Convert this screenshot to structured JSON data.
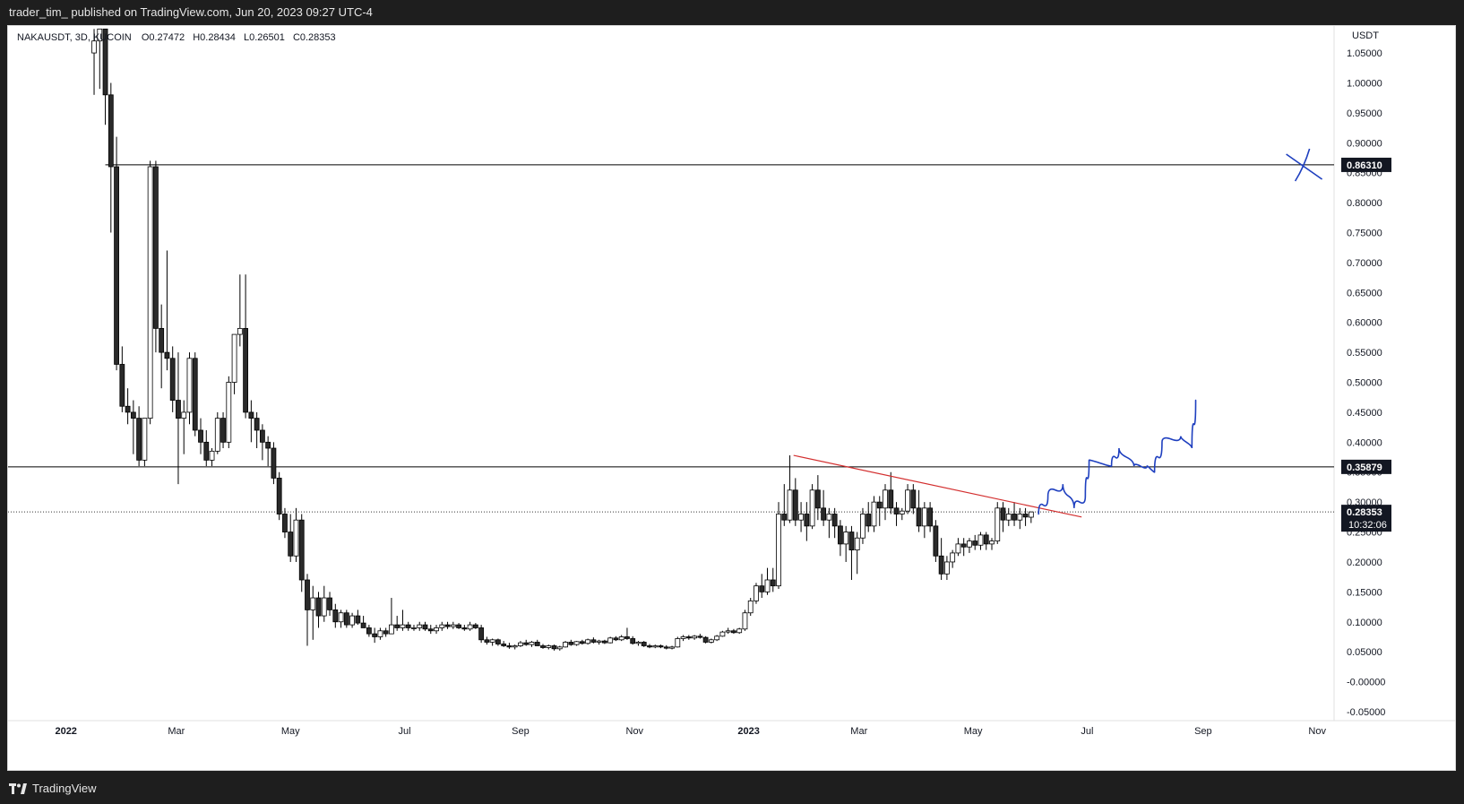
{
  "header": {
    "published_line": "trader_tim_ published on TradingView.com, Jun 20, 2023 09:27 UTC-4"
  },
  "legend": {
    "symbol": "NAKAUSDT, 3D, KUCOIN",
    "open": "O0.27472",
    "high": "H0.28434",
    "low": "L0.26501",
    "close": "C0.28353"
  },
  "footer": {
    "brand": "TradingView"
  },
  "price_axis": {
    "currency": "USDT",
    "ticks": [
      "1.05000",
      "1.00000",
      "0.95000",
      "0.90000",
      "0.85000",
      "0.80000",
      "0.75000",
      "0.70000",
      "0.65000",
      "0.60000",
      "0.55000",
      "0.50000",
      "0.45000",
      "0.40000",
      "0.35000",
      "0.30000",
      "0.25000",
      "0.20000",
      "0.15000",
      "0.10000",
      "0.05000",
      "-0.00000",
      "-0.05000"
    ],
    "tick_values": [
      1.05,
      1.0,
      0.95,
      0.9,
      0.85,
      0.8,
      0.75,
      0.7,
      0.65,
      0.6,
      0.55,
      0.5,
      0.45,
      0.4,
      0.35,
      0.3,
      0.25,
      0.2,
      0.15,
      0.1,
      0.05,
      0,
      -0.05
    ]
  },
  "time_axis": {
    "labels": [
      "2022",
      "Mar",
      "May",
      "Jul",
      "Sep",
      "Nov",
      "2023",
      "Mar",
      "May",
      "Jul",
      "Sep",
      "Nov"
    ],
    "dates": [
      "2022-01-01",
      "2022-03-01",
      "2022-05-01",
      "2022-07-01",
      "2022-09-01",
      "2022-11-01",
      "2023-01-01",
      "2023-03-01",
      "2023-05-01",
      "2023-07-01",
      "2023-09-01",
      "2023-11-01"
    ],
    "bold": [
      true,
      false,
      false,
      false,
      false,
      false,
      true,
      false,
      false,
      false,
      false,
      false
    ]
  },
  "colors": {
    "candle_up_body": "#ffffff",
    "candle_down_body": "#2a2a2a",
    "candle_outline": "#000000",
    "trendline": "#d32f2f",
    "drawing": "#1e3fbf",
    "hline": "#000000",
    "badge_bg": "#131722",
    "badge_text": "#ffffff"
  },
  "chart_data": {
    "type": "candlestick",
    "timeframe": "3D",
    "x_range": [
      "2021-12-01",
      "2023-11-10"
    ],
    "ylim": [
      -0.065,
      1.095
    ],
    "horizontal_lines": [
      {
        "value": 0.8631,
        "label": "0.86310",
        "start": "2022-01-22"
      },
      {
        "value": 0.35879,
        "label": "0.35879",
        "start": "2021-12-01"
      }
    ],
    "last_price": {
      "value": 0.28353,
      "label": "0.28353",
      "countdown": "10:32:06"
    },
    "trendline": {
      "from": {
        "date": "2023-01-25",
        "value": 0.378
      },
      "to": {
        "date": "2023-06-28",
        "value": 0.275
      }
    },
    "candles": [
      [
        "2022-01-16",
        1.05,
        1.09,
        0.98,
        1.07
      ],
      [
        "2022-01-19",
        1.07,
        1.09,
        0.99,
        1.09
      ],
      [
        "2022-01-22",
        1.09,
        1.09,
        0.93,
        0.98
      ],
      [
        "2022-01-25",
        0.98,
        1.0,
        0.75,
        0.86
      ],
      [
        "2022-01-28",
        0.86,
        0.91,
        0.52,
        0.53
      ],
      [
        "2022-01-31",
        0.53,
        0.56,
        0.45,
        0.46
      ],
      [
        "2022-02-03",
        0.46,
        0.49,
        0.43,
        0.45
      ],
      [
        "2022-02-06",
        0.45,
        0.47,
        0.38,
        0.44
      ],
      [
        "2022-02-09",
        0.44,
        0.46,
        0.36,
        0.37
      ],
      [
        "2022-02-12",
        0.37,
        0.44,
        0.36,
        0.44
      ],
      [
        "2022-02-15",
        0.44,
        0.87,
        0.43,
        0.86
      ],
      [
        "2022-02-18",
        0.86,
        0.87,
        0.55,
        0.59
      ],
      [
        "2022-02-21",
        0.59,
        0.63,
        0.49,
        0.55
      ],
      [
        "2022-02-24",
        0.55,
        0.72,
        0.52,
        0.54
      ],
      [
        "2022-02-27",
        0.54,
        0.56,
        0.45,
        0.47
      ],
      [
        "2022-03-02",
        0.47,
        0.55,
        0.33,
        0.44
      ],
      [
        "2022-03-05",
        0.44,
        0.47,
        0.38,
        0.45
      ],
      [
        "2022-03-08",
        0.45,
        0.55,
        0.43,
        0.54
      ],
      [
        "2022-03-11",
        0.54,
        0.55,
        0.41,
        0.42
      ],
      [
        "2022-03-14",
        0.42,
        0.44,
        0.38,
        0.4
      ],
      [
        "2022-03-17",
        0.4,
        0.42,
        0.36,
        0.37
      ],
      [
        "2022-03-20",
        0.37,
        0.39,
        0.36,
        0.385
      ],
      [
        "2022-03-23",
        0.385,
        0.45,
        0.38,
        0.44
      ],
      [
        "2022-03-26",
        0.44,
        0.45,
        0.39,
        0.4
      ],
      [
        "2022-03-29",
        0.4,
        0.51,
        0.39,
        0.5
      ],
      [
        "2022-04-01",
        0.5,
        0.58,
        0.48,
        0.58
      ],
      [
        "2022-04-04",
        0.58,
        0.68,
        0.56,
        0.59
      ],
      [
        "2022-04-07",
        0.59,
        0.68,
        0.44,
        0.45
      ],
      [
        "2022-04-10",
        0.45,
        0.47,
        0.4,
        0.44
      ],
      [
        "2022-04-13",
        0.44,
        0.45,
        0.39,
        0.42
      ],
      [
        "2022-04-16",
        0.42,
        0.43,
        0.37,
        0.4
      ],
      [
        "2022-04-19",
        0.4,
        0.41,
        0.36,
        0.39
      ],
      [
        "2022-04-22",
        0.39,
        0.4,
        0.33,
        0.34
      ],
      [
        "2022-04-25",
        0.34,
        0.35,
        0.27,
        0.28
      ],
      [
        "2022-04-28",
        0.28,
        0.29,
        0.24,
        0.25
      ],
      [
        "2022-05-01",
        0.25,
        0.28,
        0.2,
        0.21
      ],
      [
        "2022-05-04",
        0.21,
        0.29,
        0.2,
        0.27
      ],
      [
        "2022-05-07",
        0.27,
        0.28,
        0.15,
        0.17
      ],
      [
        "2022-05-10",
        0.17,
        0.18,
        0.06,
        0.12
      ],
      [
        "2022-05-13",
        0.12,
        0.16,
        0.07,
        0.14
      ],
      [
        "2022-05-16",
        0.14,
        0.15,
        0.09,
        0.11
      ],
      [
        "2022-05-19",
        0.11,
        0.16,
        0.1,
        0.14
      ],
      [
        "2022-05-22",
        0.14,
        0.15,
        0.11,
        0.12
      ],
      [
        "2022-05-25",
        0.12,
        0.13,
        0.09,
        0.1
      ],
      [
        "2022-05-28",
        0.1,
        0.12,
        0.09,
        0.115
      ],
      [
        "2022-05-31",
        0.115,
        0.12,
        0.09,
        0.095
      ],
      [
        "2022-06-03",
        0.095,
        0.115,
        0.09,
        0.11
      ],
      [
        "2022-06-06",
        0.11,
        0.12,
        0.095,
        0.098
      ],
      [
        "2022-06-09",
        0.098,
        0.11,
        0.09,
        0.09
      ],
      [
        "2022-06-12",
        0.09,
        0.095,
        0.075,
        0.08
      ],
      [
        "2022-06-15",
        0.08,
        0.09,
        0.065,
        0.075
      ],
      [
        "2022-06-18",
        0.075,
        0.09,
        0.07,
        0.085
      ],
      [
        "2022-06-21",
        0.085,
        0.09,
        0.075,
        0.08
      ],
      [
        "2022-06-24",
        0.08,
        0.14,
        0.08,
        0.095
      ],
      [
        "2022-06-27",
        0.095,
        0.11,
        0.085,
        0.09
      ],
      [
        "2022-06-30",
        0.09,
        0.12,
        0.085,
        0.095
      ],
      [
        "2022-07-03",
        0.095,
        0.1,
        0.085,
        0.09
      ],
      [
        "2022-07-06",
        0.09,
        0.095,
        0.085,
        0.09
      ],
      [
        "2022-07-09",
        0.09,
        0.1,
        0.085,
        0.095
      ],
      [
        "2022-07-12",
        0.095,
        0.1,
        0.085,
        0.088
      ],
      [
        "2022-07-15",
        0.088,
        0.095,
        0.08,
        0.085
      ],
      [
        "2022-07-18",
        0.085,
        0.095,
        0.08,
        0.09
      ],
      [
        "2022-07-21",
        0.09,
        0.1,
        0.085,
        0.095
      ],
      [
        "2022-07-24",
        0.095,
        0.1,
        0.088,
        0.092
      ],
      [
        "2022-07-27",
        0.092,
        0.1,
        0.088,
        0.095
      ],
      [
        "2022-07-30",
        0.095,
        0.098,
        0.088,
        0.09
      ],
      [
        "2022-08-02",
        0.09,
        0.095,
        0.085,
        0.088
      ],
      [
        "2022-08-05",
        0.088,
        0.1,
        0.085,
        0.095
      ],
      [
        "2022-08-08",
        0.095,
        0.098,
        0.088,
        0.09
      ],
      [
        "2022-08-11",
        0.09,
        0.095,
        0.065,
        0.07
      ],
      [
        "2022-08-14",
        0.07,
        0.075,
        0.062,
        0.066
      ],
      [
        "2022-08-17",
        0.066,
        0.072,
        0.06,
        0.07
      ],
      [
        "2022-08-20",
        0.07,
        0.072,
        0.06,
        0.063
      ],
      [
        "2022-08-23",
        0.063,
        0.068,
        0.058,
        0.06
      ],
      [
        "2022-08-26",
        0.06,
        0.065,
        0.055,
        0.058
      ],
      [
        "2022-08-29",
        0.058,
        0.062,
        0.054,
        0.06
      ],
      [
        "2022-09-01",
        0.06,
        0.068,
        0.058,
        0.065
      ],
      [
        "2022-09-04",
        0.065,
        0.07,
        0.06,
        0.062
      ],
      [
        "2022-09-07",
        0.062,
        0.068,
        0.058,
        0.066
      ],
      [
        "2022-09-10",
        0.066,
        0.07,
        0.06,
        0.06
      ],
      [
        "2022-09-13",
        0.06,
        0.063,
        0.055,
        0.057
      ],
      [
        "2022-09-16",
        0.057,
        0.062,
        0.054,
        0.06
      ],
      [
        "2022-09-19",
        0.06,
        0.062,
        0.052,
        0.055
      ],
      [
        "2022-09-22",
        0.055,
        0.06,
        0.052,
        0.058
      ],
      [
        "2022-09-25",
        0.058,
        0.068,
        0.057,
        0.066
      ],
      [
        "2022-09-28",
        0.066,
        0.07,
        0.06,
        0.062
      ],
      [
        "2022-10-01",
        0.062,
        0.068,
        0.06,
        0.067
      ],
      [
        "2022-10-04",
        0.067,
        0.07,
        0.062,
        0.064
      ],
      [
        "2022-10-07",
        0.064,
        0.072,
        0.062,
        0.07
      ],
      [
        "2022-10-10",
        0.07,
        0.074,
        0.064,
        0.066
      ],
      [
        "2022-10-13",
        0.066,
        0.07,
        0.062,
        0.068
      ],
      [
        "2022-10-16",
        0.068,
        0.07,
        0.063,
        0.065
      ],
      [
        "2022-10-19",
        0.065,
        0.075,
        0.064,
        0.073
      ],
      [
        "2022-10-22",
        0.073,
        0.076,
        0.068,
        0.07
      ],
      [
        "2022-10-25",
        0.07,
        0.078,
        0.068,
        0.075
      ],
      [
        "2022-10-28",
        0.075,
        0.09,
        0.07,
        0.072
      ],
      [
        "2022-10-31",
        0.072,
        0.076,
        0.062,
        0.064
      ],
      [
        "2022-11-03",
        0.064,
        0.068,
        0.06,
        0.066
      ],
      [
        "2022-11-06",
        0.066,
        0.068,
        0.058,
        0.06
      ],
      [
        "2022-11-09",
        0.06,
        0.063,
        0.056,
        0.058
      ],
      [
        "2022-11-12",
        0.058,
        0.062,
        0.056,
        0.06
      ],
      [
        "2022-11-15",
        0.06,
        0.062,
        0.056,
        0.058
      ],
      [
        "2022-11-18",
        0.058,
        0.061,
        0.054,
        0.056
      ],
      [
        "2022-11-21",
        0.056,
        0.06,
        0.054,
        0.058
      ],
      [
        "2022-11-24",
        0.058,
        0.075,
        0.057,
        0.072
      ],
      [
        "2022-11-27",
        0.072,
        0.078,
        0.068,
        0.075
      ],
      [
        "2022-11-30",
        0.075,
        0.078,
        0.07,
        0.073
      ],
      [
        "2022-12-03",
        0.073,
        0.078,
        0.07,
        0.076
      ],
      [
        "2022-12-06",
        0.076,
        0.08,
        0.072,
        0.074
      ],
      [
        "2022-12-09",
        0.074,
        0.076,
        0.064,
        0.066
      ],
      [
        "2022-12-12",
        0.066,
        0.072,
        0.064,
        0.07
      ],
      [
        "2022-12-15",
        0.07,
        0.078,
        0.068,
        0.076
      ],
      [
        "2022-12-18",
        0.076,
        0.085,
        0.075,
        0.083
      ],
      [
        "2022-12-21",
        0.083,
        0.09,
        0.08,
        0.085
      ],
      [
        "2022-12-24",
        0.085,
        0.088,
        0.08,
        0.082
      ],
      [
        "2022-12-27",
        0.082,
        0.09,
        0.08,
        0.088
      ],
      [
        "2022-12-30",
        0.088,
        0.12,
        0.085,
        0.115
      ],
      [
        "2023-01-02",
        0.115,
        0.14,
        0.11,
        0.135
      ],
      [
        "2023-01-05",
        0.135,
        0.165,
        0.13,
        0.16
      ],
      [
        "2023-01-08",
        0.16,
        0.18,
        0.14,
        0.15
      ],
      [
        "2023-01-11",
        0.15,
        0.19,
        0.145,
        0.17
      ],
      [
        "2023-01-14",
        0.17,
        0.19,
        0.15,
        0.16
      ],
      [
        "2023-01-17",
        0.16,
        0.3,
        0.155,
        0.28
      ],
      [
        "2023-01-20",
        0.28,
        0.33,
        0.26,
        0.27
      ],
      [
        "2023-01-23",
        0.27,
        0.378,
        0.265,
        0.32
      ],
      [
        "2023-01-26",
        0.32,
        0.34,
        0.26,
        0.27
      ],
      [
        "2023-01-29",
        0.27,
        0.3,
        0.25,
        0.28
      ],
      [
        "2023-02-01",
        0.28,
        0.3,
        0.235,
        0.26
      ],
      [
        "2023-02-04",
        0.26,
        0.33,
        0.255,
        0.32
      ],
      [
        "2023-02-07",
        0.32,
        0.345,
        0.27,
        0.29
      ],
      [
        "2023-02-10",
        0.29,
        0.32,
        0.26,
        0.27
      ],
      [
        "2023-02-13",
        0.27,
        0.29,
        0.24,
        0.28
      ],
      [
        "2023-02-16",
        0.28,
        0.29,
        0.24,
        0.26
      ],
      [
        "2023-02-19",
        0.26,
        0.27,
        0.21,
        0.23
      ],
      [
        "2023-02-22",
        0.23,
        0.26,
        0.2,
        0.25
      ],
      [
        "2023-02-25",
        0.25,
        0.26,
        0.17,
        0.22
      ],
      [
        "2023-02-28",
        0.22,
        0.25,
        0.18,
        0.24
      ],
      [
        "2023-03-03",
        0.24,
        0.29,
        0.23,
        0.28
      ],
      [
        "2023-03-06",
        0.28,
        0.3,
        0.25,
        0.26
      ],
      [
        "2023-03-09",
        0.26,
        0.31,
        0.25,
        0.3
      ],
      [
        "2023-03-12",
        0.3,
        0.31,
        0.26,
        0.29
      ],
      [
        "2023-03-15",
        0.29,
        0.33,
        0.27,
        0.32
      ],
      [
        "2023-03-18",
        0.32,
        0.35,
        0.28,
        0.29
      ],
      [
        "2023-03-21",
        0.29,
        0.3,
        0.26,
        0.28
      ],
      [
        "2023-03-24",
        0.28,
        0.29,
        0.27,
        0.285
      ],
      [
        "2023-03-27",
        0.285,
        0.33,
        0.28,
        0.32
      ],
      [
        "2023-03-30",
        0.32,
        0.33,
        0.28,
        0.29
      ],
      [
        "2023-04-02",
        0.29,
        0.32,
        0.25,
        0.26
      ],
      [
        "2023-04-05",
        0.26,
        0.3,
        0.24,
        0.29
      ],
      [
        "2023-04-08",
        0.29,
        0.3,
        0.25,
        0.26
      ],
      [
        "2023-04-11",
        0.26,
        0.27,
        0.2,
        0.21
      ],
      [
        "2023-04-14",
        0.21,
        0.24,
        0.17,
        0.18
      ],
      [
        "2023-04-17",
        0.18,
        0.21,
        0.17,
        0.2
      ],
      [
        "2023-04-20",
        0.2,
        0.22,
        0.19,
        0.215
      ],
      [
        "2023-04-23",
        0.215,
        0.24,
        0.21,
        0.23
      ],
      [
        "2023-04-26",
        0.23,
        0.24,
        0.21,
        0.225
      ],
      [
        "2023-04-29",
        0.225,
        0.24,
        0.215,
        0.235
      ],
      [
        "2023-05-02",
        0.235,
        0.245,
        0.22,
        0.228
      ],
      [
        "2023-05-05",
        0.228,
        0.25,
        0.22,
        0.245
      ],
      [
        "2023-05-08",
        0.245,
        0.25,
        0.22,
        0.23
      ],
      [
        "2023-05-11",
        0.23,
        0.24,
        0.22,
        0.235
      ],
      [
        "2023-05-14",
        0.235,
        0.3,
        0.23,
        0.29
      ],
      [
        "2023-05-17",
        0.29,
        0.3,
        0.25,
        0.27
      ],
      [
        "2023-05-20",
        0.27,
        0.29,
        0.26,
        0.28
      ],
      [
        "2023-05-23",
        0.28,
        0.3,
        0.26,
        0.27
      ],
      [
        "2023-05-26",
        0.27,
        0.29,
        0.255,
        0.28
      ],
      [
        "2023-05-29",
        0.28,
        0.29,
        0.26,
        0.275
      ],
      [
        "2023-06-01",
        0.27472,
        0.28434,
        0.26501,
        0.28353
      ]
    ],
    "annotations": {
      "x_mark": {
        "date": "2023-10-25",
        "value": 0.86
      },
      "projection_path": [
        [
          "2023-06-05",
          0.28
        ],
        [
          "2023-06-10",
          0.31
        ],
        [
          "2023-06-18",
          0.33
        ],
        [
          "2023-06-24",
          0.29
        ],
        [
          "2023-06-30",
          0.31
        ],
        [
          "2023-07-02",
          0.37
        ],
        [
          "2023-07-14",
          0.36
        ],
        [
          "2023-07-18",
          0.39
        ],
        [
          "2023-07-26",
          0.36
        ],
        [
          "2023-08-02",
          0.36
        ],
        [
          "2023-08-06",
          0.35
        ],
        [
          "2023-08-10",
          0.4
        ],
        [
          "2023-08-20",
          0.41
        ],
        [
          "2023-08-26",
          0.39
        ],
        [
          "2023-08-28",
          0.47
        ]
      ]
    }
  }
}
